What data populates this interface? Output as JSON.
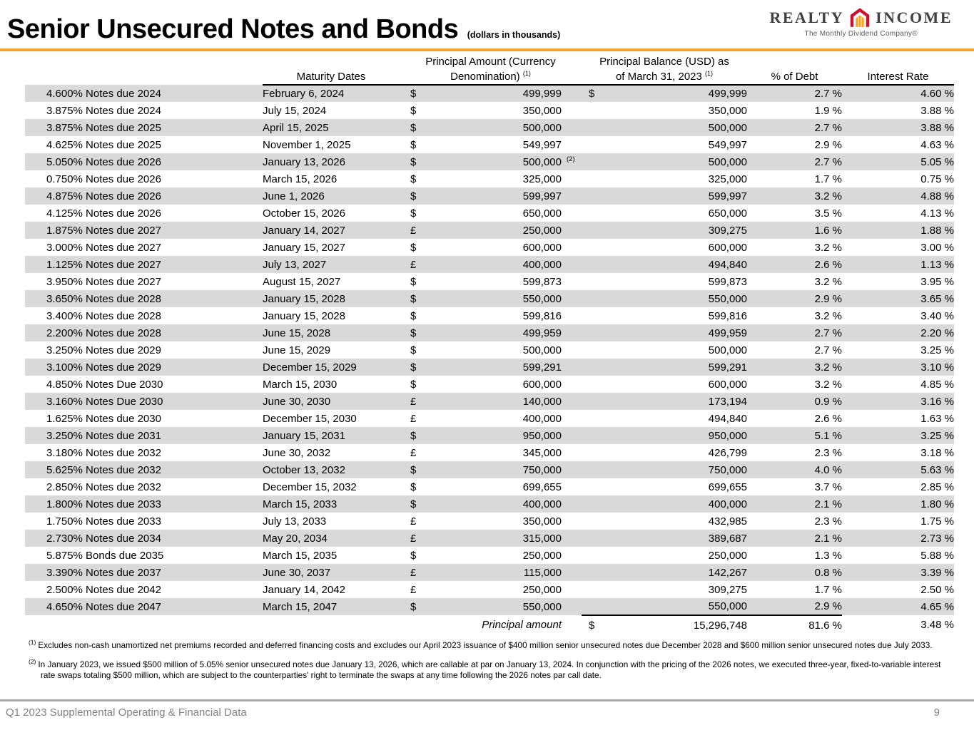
{
  "header": {
    "title": "Senior Unsecured Notes and Bonds",
    "subtitle": "(dollars in thousands)"
  },
  "logo": {
    "word_left": "REALTY",
    "word_right": "INCOME",
    "tagline": "The Monthly Dividend Company®",
    "house_icon": "realty-income-house-icon"
  },
  "colors": {
    "accent": "#F4A42A",
    "stripe": "#D9D9D9",
    "logo_red": "#CE0E2D",
    "logo_orange": "#F9A51A",
    "footer_gray": "#A7A9AC",
    "footer_text": "#808285"
  },
  "table": {
    "headers": {
      "maturity": "Maturity Dates",
      "principal_amount_line1": "Principal Amount (Currency",
      "principal_amount_line2": "Denomination)",
      "principal_amount_sup": "(1)",
      "principal_balance_line1": "Principal Balance (USD) as",
      "principal_balance_line2": "of March 31, 2023",
      "principal_balance_sup": "(1)",
      "pct_debt": "% of Debt",
      "interest_rate": "Interest Rate"
    },
    "rows": [
      {
        "name": "4.600% Notes due 2024",
        "maturity": "February 6, 2024",
        "cur": "$",
        "amount": "499,999",
        "fn": "",
        "usd_cur": "$",
        "usd": "499,999",
        "pct": "2.7 %",
        "rate": "4.60 %"
      },
      {
        "name": "3.875% Notes due 2024",
        "maturity": "July 15, 2024",
        "cur": "$",
        "amount": "350,000",
        "fn": "",
        "usd_cur": "",
        "usd": "350,000",
        "pct": "1.9 %",
        "rate": "3.88 %"
      },
      {
        "name": "3.875% Notes due 2025",
        "maturity": "April 15, 2025",
        "cur": "$",
        "amount": "500,000",
        "fn": "",
        "usd_cur": "",
        "usd": "500,000",
        "pct": "2.7 %",
        "rate": "3.88 %"
      },
      {
        "name": "4.625% Notes due 2025",
        "maturity": "November 1, 2025",
        "cur": "$",
        "amount": "549,997",
        "fn": "",
        "usd_cur": "",
        "usd": "549,997",
        "pct": "2.9 %",
        "rate": "4.63 %"
      },
      {
        "name": "5.050% Notes due 2026",
        "maturity": "January 13, 2026",
        "cur": "$",
        "amount": "500,000",
        "fn": "(2)",
        "usd_cur": "",
        "usd": "500,000",
        "pct": "2.7 %",
        "rate": "5.05 %"
      },
      {
        "name": "0.750% Notes due 2026",
        "maturity": "March 15, 2026",
        "cur": "$",
        "amount": "325,000",
        "fn": "",
        "usd_cur": "",
        "usd": "325,000",
        "pct": "1.7 %",
        "rate": "0.75 %"
      },
      {
        "name": "4.875% Notes due 2026",
        "maturity": "June 1, 2026",
        "cur": "$",
        "amount": "599,997",
        "fn": "",
        "usd_cur": "",
        "usd": "599,997",
        "pct": "3.2 %",
        "rate": "4.88 %"
      },
      {
        "name": "4.125% Notes due 2026",
        "maturity": "October 15, 2026",
        "cur": "$",
        "amount": "650,000",
        "fn": "",
        "usd_cur": "",
        "usd": "650,000",
        "pct": "3.5 %",
        "rate": "4.13 %"
      },
      {
        "name": "1.875% Notes due 2027",
        "maturity": "January 14, 2027",
        "cur": "£",
        "amount": "250,000",
        "fn": "",
        "usd_cur": "",
        "usd": "309,275",
        "pct": "1.6 %",
        "rate": "1.88 %"
      },
      {
        "name": "3.000% Notes due 2027",
        "maturity": "January 15, 2027",
        "cur": "$",
        "amount": "600,000",
        "fn": "",
        "usd_cur": "",
        "usd": "600,000",
        "pct": "3.2 %",
        "rate": "3.00 %"
      },
      {
        "name": "1.125% Notes due 2027",
        "maturity": "July 13, 2027",
        "cur": "£",
        "amount": "400,000",
        "fn": "",
        "usd_cur": "",
        "usd": "494,840",
        "pct": "2.6 %",
        "rate": "1.13 %"
      },
      {
        "name": "3.950% Notes due 2027",
        "maturity": "August 15, 2027",
        "cur": "$",
        "amount": "599,873",
        "fn": "",
        "usd_cur": "",
        "usd": "599,873",
        "pct": "3.2 %",
        "rate": "3.95 %"
      },
      {
        "name": "3.650% Notes due 2028",
        "maturity": "January 15, 2028",
        "cur": "$",
        "amount": "550,000",
        "fn": "",
        "usd_cur": "",
        "usd": "550,000",
        "pct": "2.9 %",
        "rate": "3.65 %"
      },
      {
        "name": "3.400% Notes due 2028",
        "maturity": "January 15, 2028",
        "cur": "$",
        "amount": "599,816",
        "fn": "",
        "usd_cur": "",
        "usd": "599,816",
        "pct": "3.2 %",
        "rate": "3.40 %"
      },
      {
        "name": "2.200% Notes due 2028",
        "maturity": "June 15, 2028",
        "cur": "$",
        "amount": "499,959",
        "fn": "",
        "usd_cur": "",
        "usd": "499,959",
        "pct": "2.7 %",
        "rate": "2.20 %"
      },
      {
        "name": "3.250% Notes due 2029",
        "maturity": "June 15, 2029",
        "cur": "$",
        "amount": "500,000",
        "fn": "",
        "usd_cur": "",
        "usd": "500,000",
        "pct": "2.7 %",
        "rate": "3.25 %"
      },
      {
        "name": "3.100% Notes due 2029",
        "maturity": "December 15, 2029",
        "cur": "$",
        "amount": "599,291",
        "fn": "",
        "usd_cur": "",
        "usd": "599,291",
        "pct": "3.2 %",
        "rate": "3.10 %"
      },
      {
        "name": "4.850% Notes Due 2030",
        "maturity": "March 15, 2030",
        "cur": "$",
        "amount": "600,000",
        "fn": "",
        "usd_cur": "",
        "usd": "600,000",
        "pct": "3.2 %",
        "rate": "4.85 %"
      },
      {
        "name": "3.160% Notes Due 2030",
        "maturity": "June 30, 2030",
        "cur": "£",
        "amount": "140,000",
        "fn": "",
        "usd_cur": "",
        "usd": "173,194",
        "pct": "0.9 %",
        "rate": "3.16 %"
      },
      {
        "name": "1.625% Notes due 2030",
        "maturity": "December 15, 2030",
        "cur": "£",
        "amount": "400,000",
        "fn": "",
        "usd_cur": "",
        "usd": "494,840",
        "pct": "2.6 %",
        "rate": "1.63 %"
      },
      {
        "name": "3.250% Notes due 2031",
        "maturity": "January 15, 2031",
        "cur": "$",
        "amount": "950,000",
        "fn": "",
        "usd_cur": "",
        "usd": "950,000",
        "pct": "5.1 %",
        "rate": "3.25 %"
      },
      {
        "name": "3.180% Notes due 2032",
        "maturity": "June 30, 2032",
        "cur": "£",
        "amount": "345,000",
        "fn": "",
        "usd_cur": "",
        "usd": "426,799",
        "pct": "2.3 %",
        "rate": "3.18 %"
      },
      {
        "name": "5.625% Notes due 2032",
        "maturity": "October 13, 2032",
        "cur": "$",
        "amount": "750,000",
        "fn": "",
        "usd_cur": "",
        "usd": "750,000",
        "pct": "4.0 %",
        "rate": "5.63 %"
      },
      {
        "name": "2.850% Notes due 2032",
        "maturity": "December 15, 2032",
        "cur": "$",
        "amount": "699,655",
        "fn": "",
        "usd_cur": "",
        "usd": "699,655",
        "pct": "3.7 %",
        "rate": "2.85 %"
      },
      {
        "name": "1.800% Notes due 2033",
        "maturity": "March 15, 2033",
        "cur": "$",
        "amount": "400,000",
        "fn": "",
        "usd_cur": "",
        "usd": "400,000",
        "pct": "2.1 %",
        "rate": "1.80 %"
      },
      {
        "name": "1.750% Notes due 2033",
        "maturity": "July 13, 2033",
        "cur": "£",
        "amount": "350,000",
        "fn": "",
        "usd_cur": "",
        "usd": "432,985",
        "pct": "2.3 %",
        "rate": "1.75 %"
      },
      {
        "name": "2.730% Notes due 2034",
        "maturity": "May 20, 2034",
        "cur": "£",
        "amount": "315,000",
        "fn": "",
        "usd_cur": "",
        "usd": "389,687",
        "pct": "2.1 %",
        "rate": "2.73 %"
      },
      {
        "name": "5.875% Bonds due 2035",
        "maturity": "March 15, 2035",
        "cur": "$",
        "amount": "250,000",
        "fn": "",
        "usd_cur": "",
        "usd": "250,000",
        "pct": "1.3 %",
        "rate": "5.88 %"
      },
      {
        "name": "3.390% Notes due 2037",
        "maturity": "June 30, 2037",
        "cur": "£",
        "amount": "115,000",
        "fn": "",
        "usd_cur": "",
        "usd": "142,267",
        "pct": "0.8 %",
        "rate": "3.39 %"
      },
      {
        "name": "2.500% Notes due 2042",
        "maturity": "January 14, 2042",
        "cur": "£",
        "amount": "250,000",
        "fn": "",
        "usd_cur": "",
        "usd": "309,275",
        "pct": "1.7 %",
        "rate": "2.50 %"
      },
      {
        "name": "4.650% Notes due 2047",
        "maturity": "March 15, 2047",
        "cur": "$",
        "amount": "550,000",
        "fn": "",
        "usd_cur": "",
        "usd": "550,000",
        "pct": "2.9 %",
        "rate": "4.65 %"
      }
    ],
    "total": {
      "label": "Principal amount",
      "usd_cur": "$",
      "usd": "15,296,748",
      "pct": "81.6 %",
      "rate": "3.48 %"
    }
  },
  "footnotes": [
    {
      "sup": "(1)",
      "text": "Excludes non-cash unamortized net premiums recorded and deferred financing costs and excludes our April 2023 issuance of $400 million senior unsecured notes due December 2028 and $600 million senior unsecured notes due July 2033."
    },
    {
      "sup": "(2)",
      "text": "In January 2023, we issued $500 million of 5.05% senior unsecured notes due January 13, 2026, which are callable at par on January 13, 2024. In conjunction with the pricing of the 2026 notes, we executed three-year, fixed-to-variable interest rate swaps totaling $500 million, which are subject to the counterparties' right to terminate the swaps at any time following the 2026 notes par call date."
    }
  ],
  "footer": {
    "left": "Q1 2023 Supplemental Operating & Financial Data",
    "page_number": "9"
  }
}
